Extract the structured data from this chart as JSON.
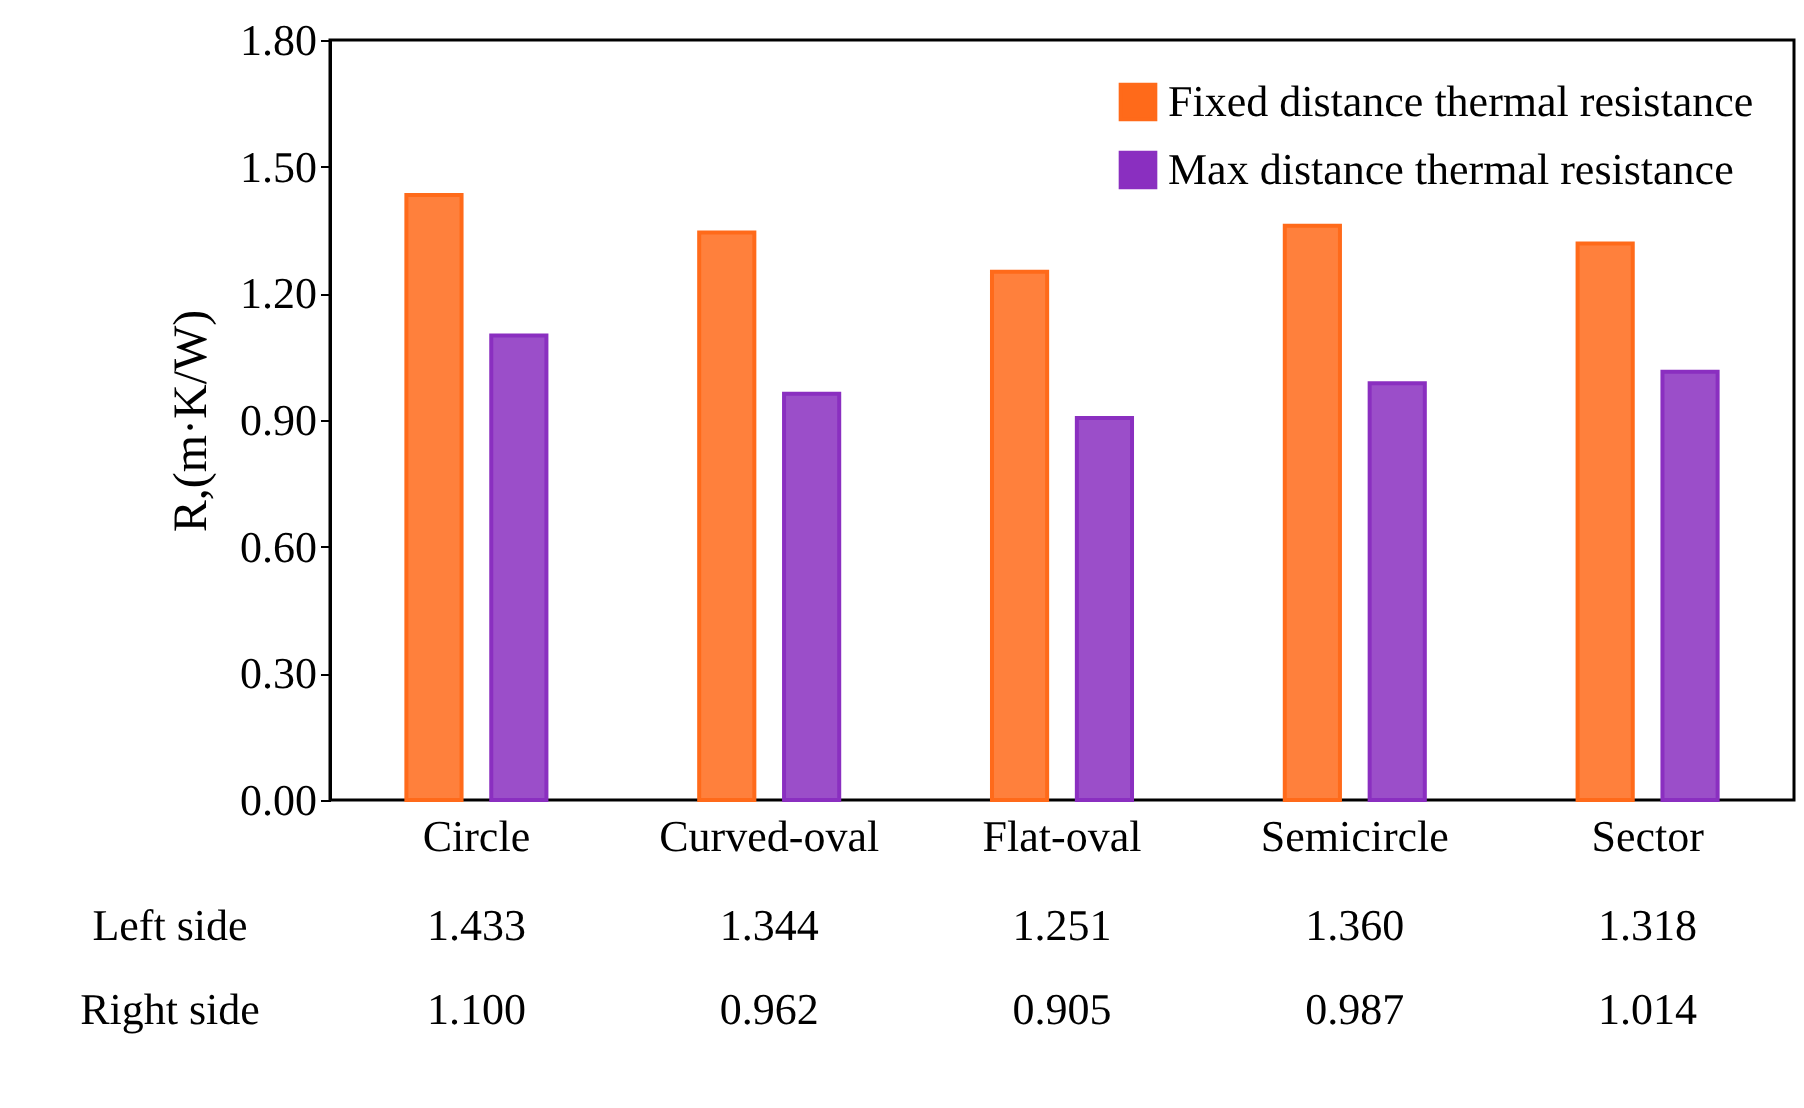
{
  "chart_data": {
    "type": "bar",
    "ylabel": "R,(m·K/W)",
    "categories": [
      "Circle",
      "Curved-oval",
      "Flat-oval",
      "Semicircle",
      "Sector"
    ],
    "series": [
      {
        "name": "Fixed distance thermal resistance",
        "color": "#ff6a1a",
        "values": [
          1.433,
          1.344,
          1.251,
          1.36,
          1.318
        ],
        "value_labels": [
          "1.433",
          "1.344",
          "1.251",
          "1.360",
          "1.318"
        ]
      },
      {
        "name": "Max distance thermal resistance",
        "color": "#8a2fc0",
        "values": [
          1.1,
          0.962,
          0.905,
          0.987,
          1.014
        ],
        "value_labels": [
          "1.100",
          "0.962",
          "0.905",
          "0.987",
          "1.014"
        ]
      }
    ],
    "annotations": [
      "Left side",
      "Right side"
    ],
    "ylim": [
      0,
      1.8
    ],
    "yticks": [
      {
        "value": 0,
        "label": "0.00"
      },
      {
        "value": 0.3,
        "label": "0.30"
      },
      {
        "value": 0.6,
        "label": "0.60"
      },
      {
        "value": 0.9,
        "label": "0.90"
      },
      {
        "value": 1.2,
        "label": "1.20"
      },
      {
        "value": 1.5,
        "label": "1.50"
      },
      {
        "value": 1.8,
        "label": "1.80"
      }
    ],
    "grid": false,
    "legend": "top right"
  }
}
